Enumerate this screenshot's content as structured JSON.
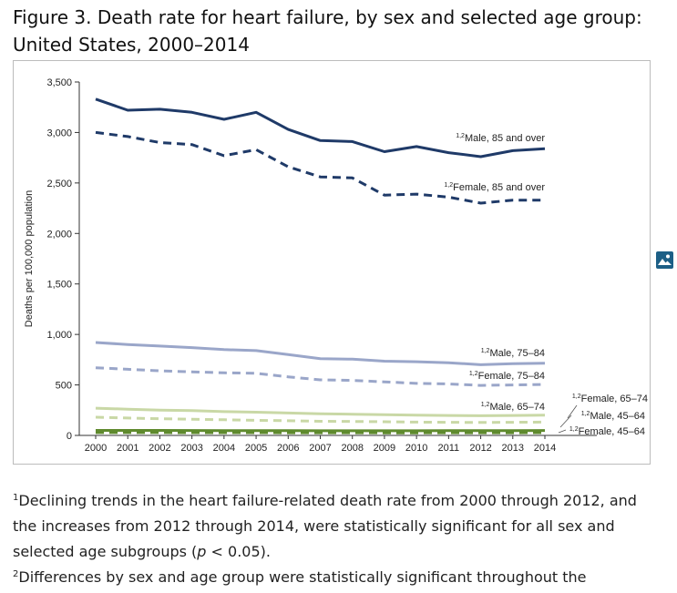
{
  "page": {
    "title": "Figure 3. Death rate for heart failure, by sex and selected age group: United States, 2000–2014",
    "image_icon": "image-icon"
  },
  "footnotes": [
    {
      "marker": "1",
      "text_before": "Declining trends in the heart failure-related death rate from 2000 through 2012, and the increases from 2012 through 2014, were statistically significant for all sex and selected age subgroups (",
      "italic": "p",
      "text_after": " < 0.05)."
    },
    {
      "marker": "2",
      "text": "Differences by sex and age group were statistically significant throughout the"
    }
  ],
  "chart_data": {
    "type": "line",
    "title": "Figure 3. Death rate for heart failure, by sex and selected age group: United States, 2000–2014",
    "xlabel": "",
    "ylabel": "Deaths per 100,000 population",
    "ylim": [
      0,
      3500
    ],
    "yticks": [
      0,
      500,
      1000,
      1500,
      2000,
      2500,
      3000,
      3500
    ],
    "ytick_labels": [
      "0",
      "500",
      "1,000",
      "1,500",
      "2,000",
      "2,500",
      "3,000",
      "3,500"
    ],
    "x": [
      2000,
      2001,
      2002,
      2003,
      2004,
      2005,
      2006,
      2007,
      2008,
      2009,
      2010,
      2011,
      2012,
      2013,
      2014
    ],
    "xtick_labels": [
      "2000",
      "2001",
      "2002",
      "2003",
      "2004",
      "2005",
      "2006",
      "2007",
      "2008",
      "2009",
      "2010",
      "2011",
      "2012",
      "2013",
      "2014"
    ],
    "grid": false,
    "series": [
      {
        "name": "Male, 85 and over",
        "sup": "1,2",
        "color": "#1f3a68",
        "dash": "solid",
        "values": [
          3330,
          3220,
          3230,
          3200,
          3130,
          3200,
          3030,
          2920,
          2910,
          2810,
          2860,
          2800,
          2760,
          2820,
          2840
        ]
      },
      {
        "name": "Female, 85 and over",
        "sup": "1,2",
        "color": "#1f3a68",
        "dash": "dashed",
        "values": [
          3000,
          2960,
          2900,
          2880,
          2770,
          2830,
          2660,
          2560,
          2550,
          2380,
          2390,
          2360,
          2300,
          2330,
          2330
        ]
      },
      {
        "name": "Male, 75–84",
        "sup": "1,2",
        "color": "#9aa6c9",
        "dash": "solid",
        "values": [
          920,
          900,
          885,
          870,
          850,
          840,
          800,
          760,
          755,
          735,
          730,
          720,
          700,
          710,
          715
        ]
      },
      {
        "name": "Female, 75–84",
        "sup": "1,2",
        "color": "#9aa6c9",
        "dash": "dashed",
        "values": [
          670,
          655,
          640,
          630,
          620,
          615,
          580,
          550,
          545,
          530,
          515,
          510,
          495,
          500,
          505
        ]
      },
      {
        "name": "Male, 65–74",
        "sup": "1,2",
        "color": "#c9d8a6",
        "dash": "solid",
        "values": [
          270,
          260,
          250,
          245,
          235,
          230,
          222,
          215,
          210,
          205,
          200,
          198,
          195,
          198,
          200
        ]
      },
      {
        "name": "Female, 65–74",
        "sup": "1,2",
        "color": "#c9d8a6",
        "dash": "dashed",
        "values": [
          180,
          172,
          165,
          160,
          155,
          150,
          145,
          140,
          138,
          135,
          132,
          130,
          128,
          130,
          132
        ]
      },
      {
        "name": "Male, 45–64",
        "sup": "1,2",
        "color": "#5f8a2e",
        "dash": "solid",
        "values": [
          50,
          50,
          50,
          49,
          48,
          48,
          47,
          46,
          46,
          46,
          46,
          47,
          47,
          48,
          49
        ]
      },
      {
        "name": "Female, 45–64",
        "sup": "1,2",
        "color": "#5f8a2e",
        "dash": "dashed",
        "values": [
          28,
          28,
          28,
          27,
          27,
          27,
          26,
          26,
          26,
          25,
          25,
          26,
          26,
          26,
          27
        ]
      }
    ]
  }
}
